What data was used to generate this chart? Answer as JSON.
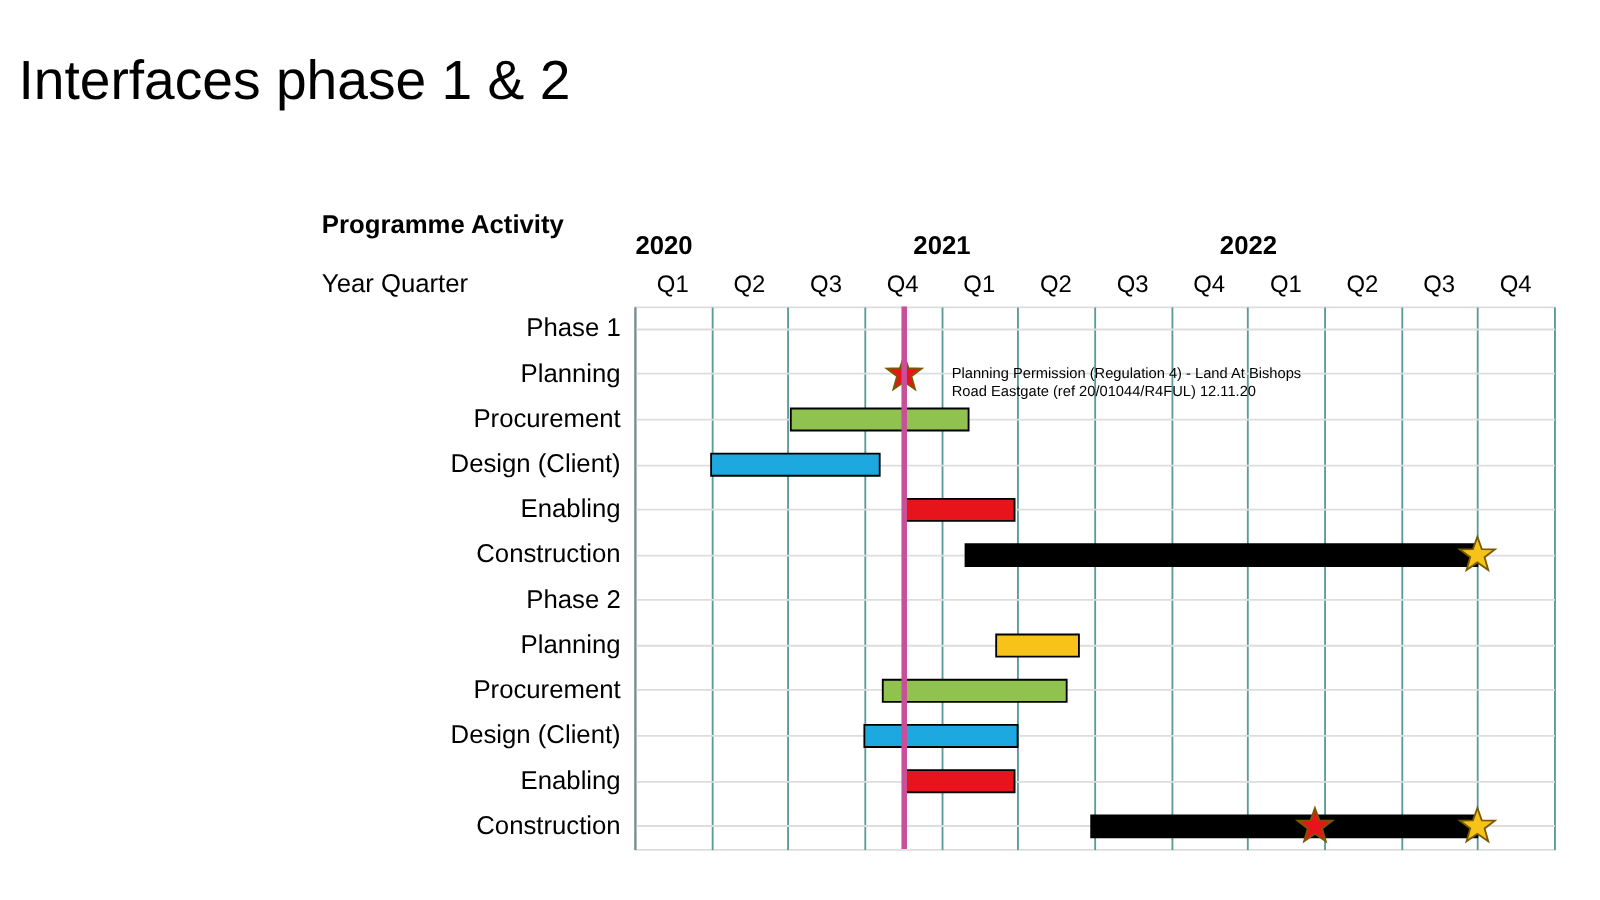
{
  "chart_data": {
    "type": "bar",
    "orientation": "horizontal",
    "title": "Interfaces phase 1 & 2",
    "categories": [
      "Phase 1",
      "Planning",
      "Procurement",
      "Design (Client)",
      "Enabling",
      "Construction",
      "Phase 2",
      "Planning",
      "Procurement",
      "Design (Client)",
      "Enabling",
      "Construction"
    ],
    "series": [
      {
        "values": [
          null,
          null,
          0.58,
          0.55,
          0.36,
          1.67,
          null,
          0.27,
          0.6,
          0.5,
          0.36,
          1.26
        ],
        "base": [
          null,
          null,
          2020.51,
          2020.25,
          2020.88,
          2021.08,
          null,
          2021.18,
          2020.81,
          2020.75,
          2020.88,
          2021.49
        ],
        "colors": [
          "#000000",
          "#000000",
          "#8fc24f",
          "#1ea8e0",
          "#e8141c",
          "#000000",
          "#000000",
          "#f7c318",
          "#8fc24f",
          "#1ea8e0",
          "#e8141c",
          "#000000"
        ]
      },
      {
        "type": "scatter",
        "marker": "star",
        "color": "#e8141c",
        "values": [
          null,
          2020.88,
          null,
          null,
          null,
          null,
          null,
          null,
          null,
          null,
          null,
          2022.22
        ]
      },
      {
        "type": "scatter",
        "marker": "star",
        "color": "#f7c318",
        "values": [
          null,
          null,
          null,
          null,
          null,
          2022.75,
          null,
          null,
          null,
          null,
          null,
          2022.75
        ]
      }
    ],
    "xlim": [
      2020,
      2023
    ],
    "xticks": [
      2020,
      {
        "value": 2020.25,
        "label": null
      },
      {
        "value": 2020.5,
        "label": null
      },
      {
        "value": 2020.75,
        "label": null
      },
      2021,
      {
        "value": 2021.25,
        "label": null
      },
      {
        "value": 2021.5,
        "label": null
      },
      {
        "value": 2021.75,
        "label": null
      },
      2022,
      {
        "value": 2022.25,
        "label": null
      },
      {
        "value": 2022.5,
        "label": null
      },
      {
        "value": 2022.75,
        "label": null
      },
      {
        "value": 2023,
        "label": null
      }
    ],
    "ref_lines": [
      {
        "axis": "x",
        "value": 2020.88,
        "color": "#c8509a"
      }
    ],
    "annotations": [
      "Planning  Permission (Regulation 4) - Land At Bishops Road Eastgate (ref 20/01044/R4FUL) 12.11.20",
      "Programme Activity",
      "Year Quarter",
      "Q1",
      "Q2",
      "Q3",
      "Q4",
      "Q1",
      "Q2",
      "Q3",
      "Q4",
      "Q1",
      "Q2",
      "Q3",
      "Q4"
    ],
    "grid": true,
    "legend": false
  }
}
